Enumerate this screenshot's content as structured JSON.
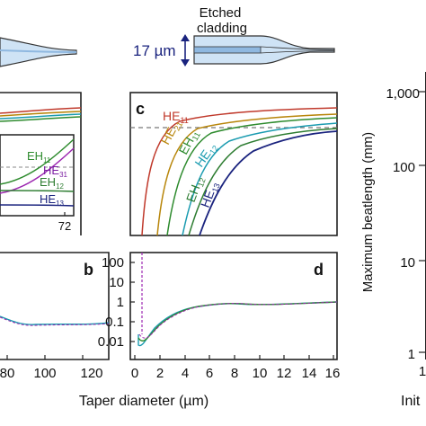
{
  "header": {
    "etched_label_line1": "Etched",
    "etched_label_line2": "cladding",
    "width_label": "17 µm"
  },
  "panels": {
    "b": {
      "label": "b",
      "x_ticks": [
        "80",
        "100",
        "120"
      ]
    },
    "c": {
      "label": "c",
      "mode_labels": [
        {
          "base": "HE",
          "sub": "11",
          "color": "#c0392b"
        },
        {
          "base": "HE",
          "sub": "21",
          "color": "#b8860b"
        },
        {
          "base": "EH",
          "sub": "11",
          "color": "#2e8b2e"
        },
        {
          "base": "HE",
          "sub": "12",
          "color": "#1a9bb0"
        },
        {
          "base": "EH",
          "sub": "12",
          "color": "#2e7d32"
        },
        {
          "base": "HE",
          "sub": "13",
          "color": "#1a237e"
        }
      ]
    },
    "d": {
      "label": "d",
      "y_ticks": [
        "100",
        "10",
        "1",
        "0.1",
        "0.01"
      ],
      "x_ticks": [
        "0",
        "2",
        "4",
        "6",
        "8",
        "10",
        "12",
        "14",
        "16"
      ]
    },
    "inset": {
      "x_tick": "72",
      "mode_labels": [
        {
          "base": "EH",
          "sub": "11",
          "color": "#2e8b2e"
        },
        {
          "base": "HE",
          "sub": "31",
          "color": "#7b1fa2"
        },
        {
          "base": "EH",
          "sub": "12",
          "color": "#2e7d32"
        },
        {
          "base": "HE",
          "sub": "13",
          "color": "#1a237e"
        }
      ]
    },
    "right": {
      "ylabel": "Maximum beatlength (mm)",
      "y_ticks": [
        "1,000",
        "100",
        "10",
        "1"
      ],
      "x_ticks": [
        "1"
      ],
      "xlabel_partial": "Init"
    }
  },
  "xlabel": "Taper diameter (µm)",
  "colors": {
    "he11": "#c0392b",
    "he21": "#b8860b",
    "eh11": "#2e8b2e",
    "he12": "#1a9bb0",
    "eh12": "#2e7d32",
    "he13": "#1a237e",
    "dashed": "#777777",
    "purple": "#9c27b0",
    "fiber_fill": "#cfe3f5",
    "fiber_core": "#8fb8e0",
    "arrow": "#1a237e"
  }
}
